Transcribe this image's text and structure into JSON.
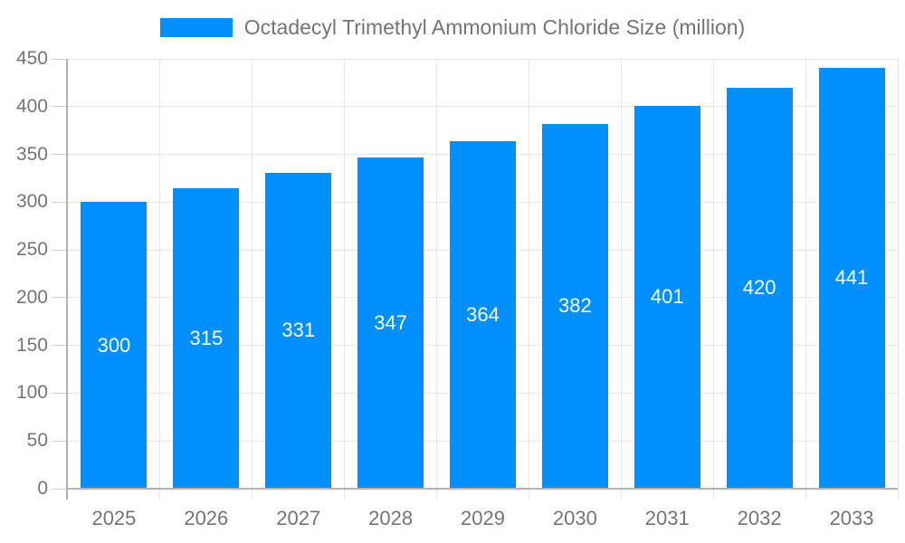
{
  "legend": {
    "label": "Octadecyl Trimethyl Ammonium Chloride Size (million)"
  },
  "chart_data": {
    "type": "bar",
    "title": "Octadecyl Trimethyl Ammonium Chloride Size (million)",
    "categories": [
      "2025",
      "2026",
      "2027",
      "2028",
      "2029",
      "2030",
      "2031",
      "2032",
      "2033"
    ],
    "series": [
      {
        "name": "Octadecyl Trimethyl Ammonium Chloride Size (million)",
        "values": [
          300,
          315,
          331,
          347,
          364,
          382,
          401,
          420,
          441
        ]
      }
    ],
    "bar_labels": [
      300,
      315,
      331,
      347,
      364,
      382,
      401,
      420,
      441
    ],
    "xlabel": "",
    "ylabel": "",
    "ylim": [
      0,
      450
    ],
    "yticks": [
      0,
      50,
      100,
      150,
      200,
      250,
      300,
      350,
      400,
      450
    ],
    "grid": true,
    "legend_position": "top",
    "bar_label_position": "inside-center"
  },
  "colors": {
    "bar": "#008FFB",
    "bar_label": "#FFFFFF",
    "grid": "#E7E7E7",
    "axis_line": "#B3B3B3",
    "tick": "#CFCFCF",
    "axis_label": "#757575",
    "title": "#757575",
    "background": "#FFFFFF"
  }
}
